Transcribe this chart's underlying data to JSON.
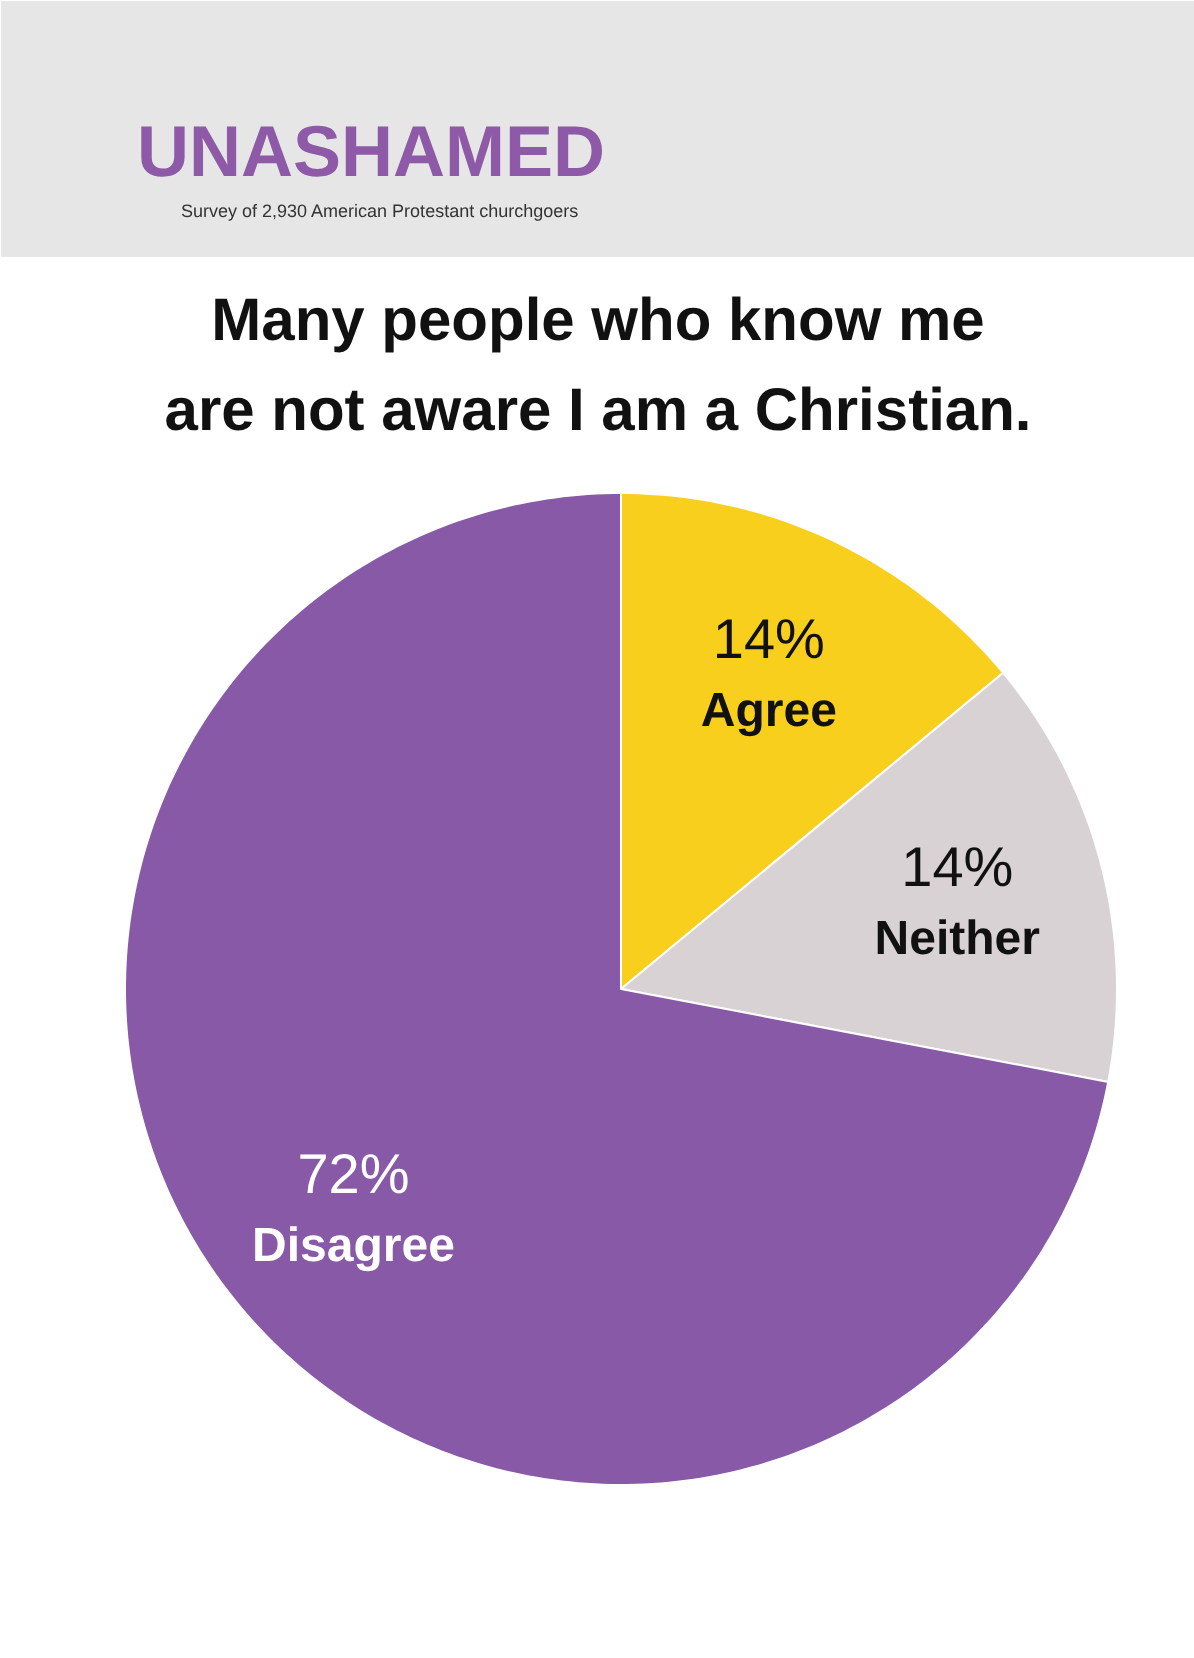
{
  "chart_data": {
    "type": "pie",
    "subtitle": "UNASHAMED",
    "annotations": [
      "Survey of 2,930 American Protestant churchgoers"
    ],
    "title": "Many people who know me\nare not aware I am a Christian.",
    "categories": [
      "Agree",
      "Neither",
      "Disagree"
    ],
    "values": [
      14,
      14,
      72
    ],
    "value_labels": [
      "14%",
      "14%",
      "72%"
    ],
    "colors": [
      "#f9cf1e",
      "#d9d2d4",
      "#8759a6"
    ]
  }
}
